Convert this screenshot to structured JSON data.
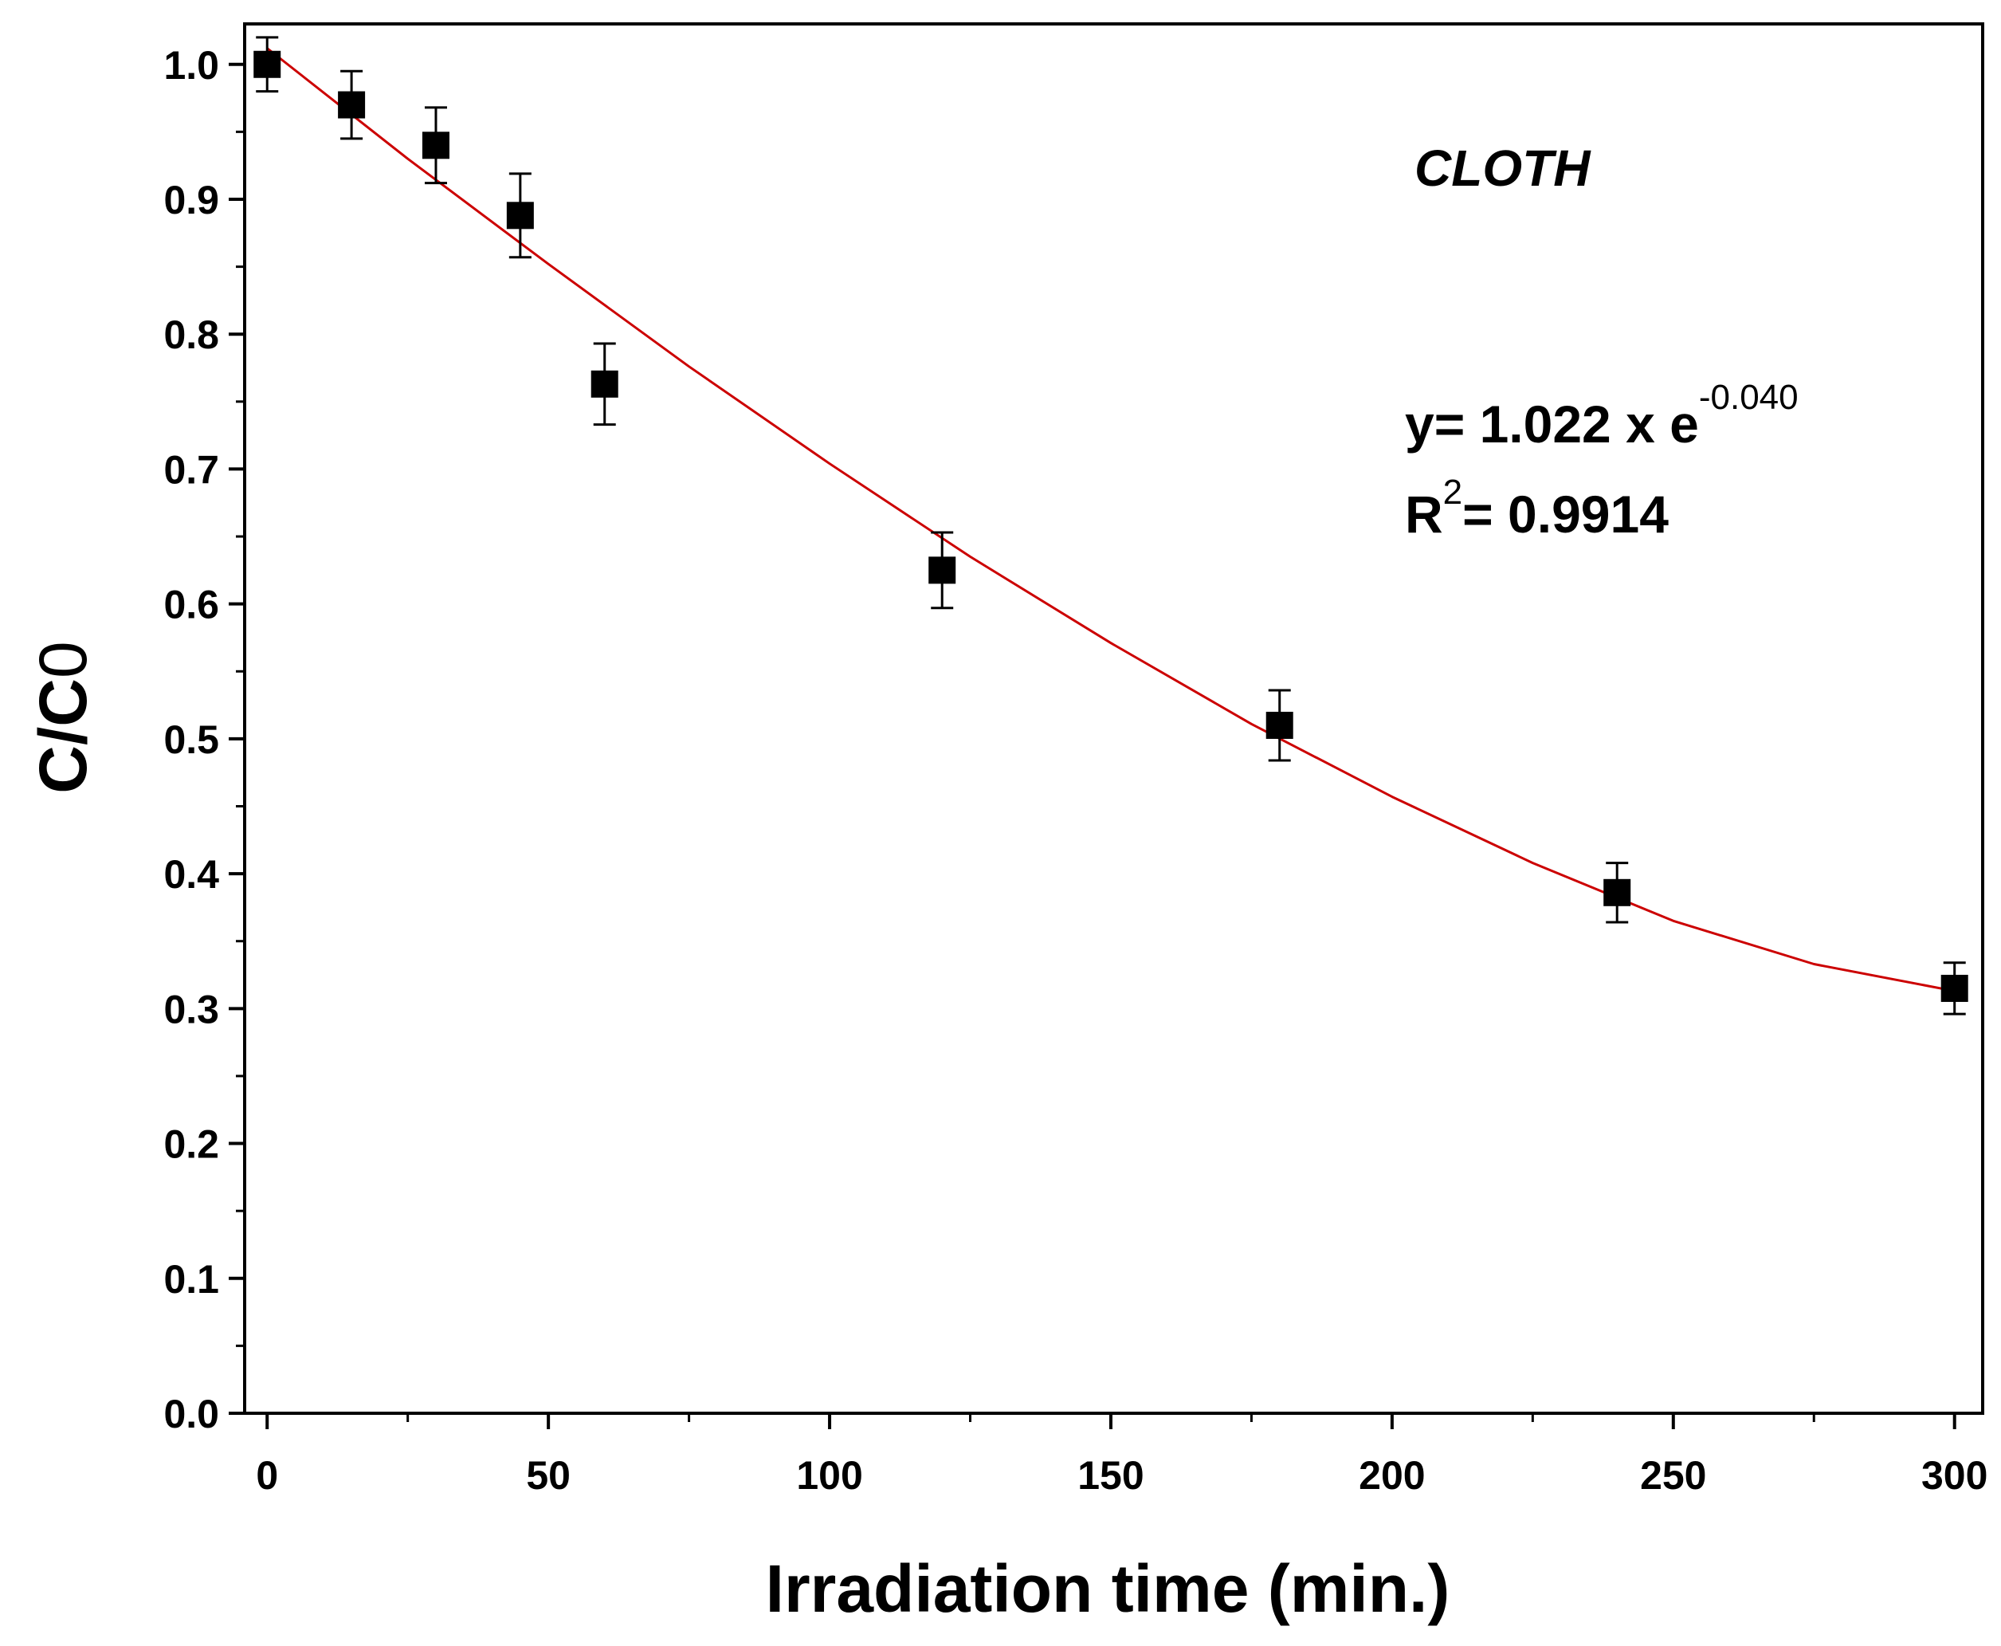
{
  "chart_data": {
    "type": "scatter",
    "xlabel": "Irradiation time (min.)",
    "ylabel_main": "C/C",
    "ylabel_sub": "0",
    "xlim": [
      -4,
      305
    ],
    "ylim": [
      0.0,
      1.03
    ],
    "x_ticks": [
      0,
      50,
      100,
      150,
      200,
      250,
      300
    ],
    "x_tick_labels": [
      "0",
      "50",
      "100",
      "150",
      "200",
      "250",
      "300"
    ],
    "y_ticks": [
      0.0,
      0.1,
      0.2,
      0.3,
      0.4,
      0.5,
      0.6,
      0.7,
      0.8,
      0.9,
      1.0
    ],
    "y_tick_labels": [
      "0.0",
      "0.1",
      "0.2",
      "0.3",
      "0.4",
      "0.5",
      "0.6",
      "0.7",
      "0.8",
      "0.9",
      "1.0"
    ],
    "grid": false,
    "series": [
      {
        "name": "CLOTH",
        "marker": "square",
        "color": "#000000",
        "x": [
          0,
          15,
          30,
          45,
          60,
          120,
          180,
          240,
          300
        ],
        "y": [
          1.0,
          0.97,
          0.94,
          0.888,
          0.763,
          0.625,
          0.51,
          0.386,
          0.315
        ],
        "yerr": [
          0.02,
          0.025,
          0.028,
          0.031,
          0.03,
          0.028,
          0.026,
          0.022,
          0.019
        ]
      }
    ],
    "fit_curve": {
      "name": "exponential fit",
      "color": "#cc0000",
      "x": [
        0,
        25,
        50,
        75,
        100,
        125,
        150,
        175,
        200,
        225,
        250,
        275,
        300
      ],
      "y": [
        1.012,
        0.93,
        0.852,
        0.776,
        0.704,
        0.635,
        0.571,
        0.511,
        0.457,
        0.408,
        0.365,
        0.333,
        0.313
      ]
    },
    "annotations": {
      "series_label": "CLOTH",
      "equation_main": "y= 1.022 x e",
      "equation_exp": "-0.040",
      "r2_prefix": "R",
      "r2_sup": "2",
      "r2_value": "= 0.9914"
    }
  }
}
